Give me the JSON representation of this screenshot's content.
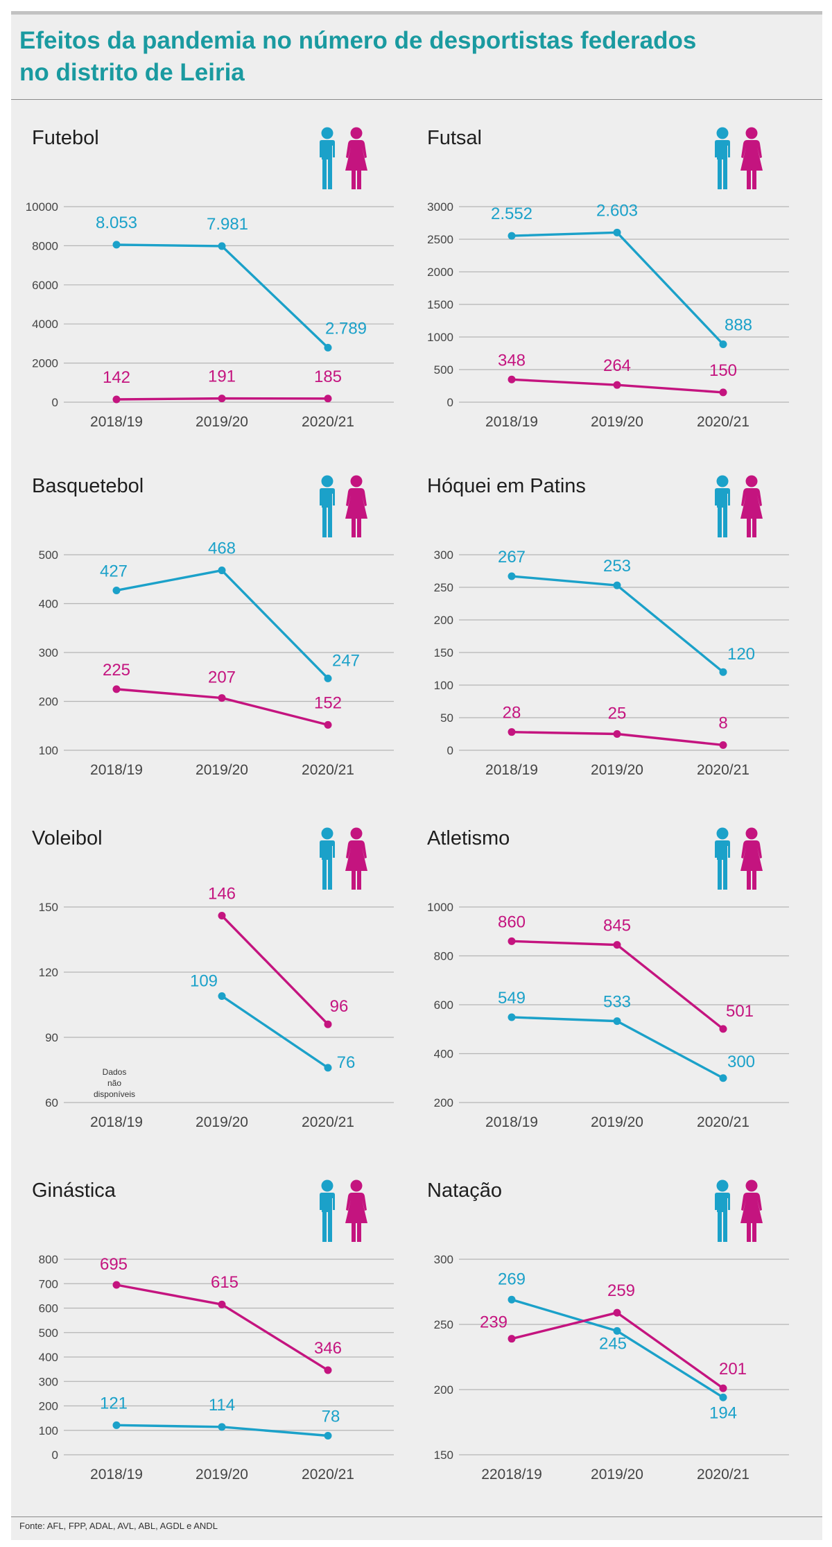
{
  "page": {
    "title_line1": "Efeitos da pandemia no número de desportistas federados",
    "title_line2": "no distrito de Leiria",
    "source": "Fonte:  AFL, FPP, ADAL, AVL, ABL, AGDL e ANDL"
  },
  "colors": {
    "male": "#1ba1c9",
    "female": "#c4147f",
    "grid": "#b5b5b5",
    "axis_text": "#444444",
    "title": "#1a9aa0"
  },
  "icons": [
    "male-figure-icon",
    "female-figure-icon"
  ],
  "chart_data": [
    {
      "type": "line",
      "title": "Futebol",
      "categories": [
        "2018/19",
        "2019/20",
        "2020/21"
      ],
      "ylim": [
        0,
        10000
      ],
      "yticks": [
        0,
        2000,
        4000,
        6000,
        8000,
        10000
      ],
      "ytick_labels": [
        "0",
        "2000",
        "4000",
        "6000",
        "8000",
        "10000"
      ],
      "series": [
        {
          "key": "male",
          "values": [
            8053,
            7981,
            2789
          ],
          "labels": [
            "8.053",
            "7.981",
            "2.789"
          ]
        },
        {
          "key": "female",
          "values": [
            142,
            191,
            185
          ],
          "labels": [
            "142",
            "191",
            "185"
          ]
        }
      ]
    },
    {
      "type": "line",
      "title": "Futsal",
      "categories": [
        "2018/19",
        "2019/20",
        "2020/21"
      ],
      "ylim": [
        0,
        3000
      ],
      "yticks": [
        0,
        500,
        1000,
        1500,
        2000,
        2500,
        3000
      ],
      "ytick_labels": [
        "0",
        "500",
        "1000",
        "1500",
        "2000",
        "2500",
        "3000"
      ],
      "series": [
        {
          "key": "male",
          "values": [
            2552,
            2603,
            888
          ],
          "labels": [
            "2.552",
            "2.603",
            "888"
          ]
        },
        {
          "key": "female",
          "values": [
            348,
            264,
            150
          ],
          "labels": [
            "348",
            "264",
            "150"
          ]
        }
      ]
    },
    {
      "type": "line",
      "title": "Basquetebol",
      "categories": [
        "2018/19",
        "2019/20",
        "2020/21"
      ],
      "ylim": [
        100,
        500
      ],
      "yticks": [
        100,
        200,
        300,
        400,
        500
      ],
      "ytick_labels": [
        "100",
        "200",
        "300",
        "400",
        "500"
      ],
      "series": [
        {
          "key": "male",
          "values": [
            427,
            468,
            247
          ],
          "labels": [
            "427",
            "468",
            "247"
          ]
        },
        {
          "key": "female",
          "values": [
            225,
            207,
            152
          ],
          "labels": [
            "225",
            "207",
            "152"
          ]
        }
      ]
    },
    {
      "type": "line",
      "title": "Hóquei em Patins",
      "categories": [
        "2018/19",
        "2019/20",
        "2020/21"
      ],
      "ylim": [
        0,
        300
      ],
      "yticks": [
        0,
        50,
        100,
        150,
        200,
        250,
        300
      ],
      "ytick_labels": [
        "0",
        "50",
        "100",
        "150",
        "200",
        "250",
        "300"
      ],
      "series": [
        {
          "key": "male",
          "values": [
            267,
            253,
            120
          ],
          "labels": [
            "267",
            "253",
            "120"
          ]
        },
        {
          "key": "female",
          "values": [
            28,
            25,
            8
          ],
          "labels": [
            "28",
            "25",
            "8"
          ]
        }
      ]
    },
    {
      "type": "line",
      "title": "Voleibol",
      "categories": [
        "2018/19",
        "2019/20",
        "2020/21"
      ],
      "ylim": [
        60,
        150
      ],
      "yticks": [
        60,
        90,
        120,
        150
      ],
      "ytick_labels": [
        "60",
        "90",
        "120",
        "150"
      ],
      "note": [
        "Dados",
        "não",
        "disponíveis"
      ],
      "series": [
        {
          "key": "male",
          "values": [
            null,
            109,
            76
          ],
          "labels": [
            "",
            "109",
            "76"
          ]
        },
        {
          "key": "female",
          "values": [
            null,
            146,
            96
          ],
          "labels": [
            "",
            "146",
            "96"
          ]
        }
      ]
    },
    {
      "type": "line",
      "title": "Atletismo",
      "categories": [
        "2018/19",
        "2019/20",
        "2020/21"
      ],
      "ylim": [
        200,
        1000
      ],
      "yticks": [
        200,
        400,
        600,
        800,
        1000
      ],
      "ytick_labels": [
        "200",
        "400",
        "600",
        "800",
        "1000"
      ],
      "series": [
        {
          "key": "female",
          "values": [
            860,
            845,
            501
          ],
          "labels": [
            "860",
            "845",
            "501"
          ]
        },
        {
          "key": "male",
          "values": [
            549,
            533,
            300
          ],
          "labels": [
            "549",
            "533",
            "300"
          ]
        }
      ]
    },
    {
      "type": "line",
      "title": "Ginástica",
      "categories": [
        "2018/19",
        "2019/20",
        "2020/21"
      ],
      "ylim": [
        0,
        800
      ],
      "yticks": [
        0,
        100,
        200,
        300,
        400,
        500,
        600,
        700,
        800
      ],
      "ytick_labels": [
        "0",
        "100",
        "200",
        "300",
        "400",
        "500",
        "600",
        "700",
        "800"
      ],
      "series": [
        {
          "key": "female",
          "values": [
            695,
            615,
            346
          ],
          "labels": [
            "695",
            "615",
            "346"
          ]
        },
        {
          "key": "male",
          "values": [
            121,
            114,
            78
          ],
          "labels": [
            "121",
            "114",
            "78"
          ]
        }
      ]
    },
    {
      "type": "line",
      "title": "Natação",
      "categories": [
        "22018/19",
        "2019/20",
        "2020/21"
      ],
      "ylim": [
        150,
        300
      ],
      "yticks": [
        150,
        200,
        250,
        300
      ],
      "ytick_labels": [
        "150",
        "200",
        "250",
        "300"
      ],
      "series": [
        {
          "key": "male",
          "values": [
            269,
            245,
            194
          ],
          "labels": [
            "269",
            "245",
            "194"
          ]
        },
        {
          "key": "female",
          "values": [
            239,
            259,
            201
          ],
          "labels": [
            "239",
            "259",
            "201"
          ]
        }
      ]
    }
  ]
}
